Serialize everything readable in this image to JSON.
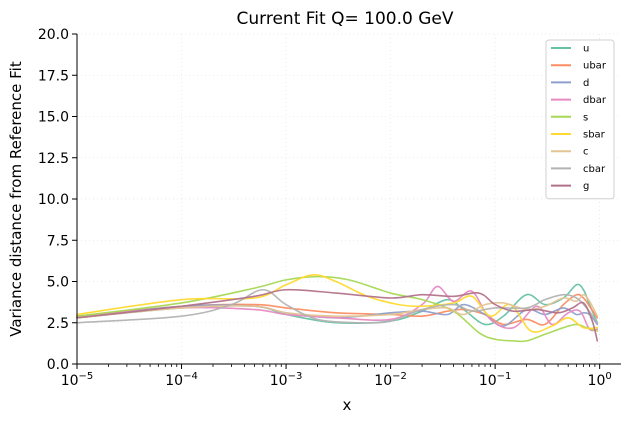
{
  "chart_data": {
    "type": "line",
    "title": "Current Fit Q= 100.0 GeV",
    "xlabel": "x",
    "ylabel": "Variance distance from Reference Fit",
    "xscale": "log",
    "xlim": [
      1e-05,
      1.6
    ],
    "ylim": [
      0,
      20
    ],
    "x_ticks": [
      1e-05,
      0.0001,
      0.001,
      0.01,
      0.1,
      1
    ],
    "x_tick_labels": [
      {
        "base": "10",
        "exp": "−5"
      },
      {
        "base": "10",
        "exp": "−4"
      },
      {
        "base": "10",
        "exp": "−3"
      },
      {
        "base": "10",
        "exp": "−2"
      },
      {
        "base": "10",
        "exp": "−1"
      },
      {
        "base": "10",
        "exp": "0"
      }
    ],
    "y_ticks": [
      0,
      2.5,
      5,
      7.5,
      10,
      12.5,
      15,
      17.5,
      20
    ],
    "y_tick_labels": [
      "0.0",
      "2.5",
      "5.0",
      "7.5",
      "10.0",
      "12.5",
      "15.0",
      "17.5",
      "20.0"
    ],
    "grid": true,
    "legend_position": "top-right",
    "series": [
      {
        "name": "u",
        "color": "#66c2a5",
        "x": [
          1e-05,
          0.0001,
          0.0005,
          0.001,
          0.003,
          0.01,
          0.02,
          0.035,
          0.05,
          0.08,
          0.12,
          0.2,
          0.3,
          0.45,
          0.6,
          0.7,
          0.8,
          0.95
        ],
        "y": [
          2.8,
          3.4,
          3.5,
          3.0,
          2.5,
          2.6,
          3.2,
          3.9,
          3.3,
          2.4,
          2.9,
          4.2,
          3.6,
          4.0,
          4.8,
          4.5,
          3.6,
          2.5
        ]
      },
      {
        "name": "ubar",
        "color": "#fc8d62",
        "x": [
          1e-05,
          0.0001,
          0.0005,
          0.001,
          0.003,
          0.01,
          0.02,
          0.035,
          0.05,
          0.08,
          0.12,
          0.2,
          0.3,
          0.45,
          0.6,
          0.7,
          0.8,
          0.95
        ],
        "y": [
          2.9,
          3.5,
          3.6,
          3.4,
          3.1,
          3.0,
          2.9,
          3.2,
          3.3,
          3.0,
          2.4,
          2.7,
          2.4,
          3.6,
          4.2,
          4.0,
          3.5,
          2.8
        ]
      },
      {
        "name": "d",
        "color": "#8da0cb",
        "x": [
          1e-05,
          0.0001,
          0.0005,
          0.001,
          0.003,
          0.01,
          0.02,
          0.035,
          0.05,
          0.08,
          0.12,
          0.2,
          0.3,
          0.45,
          0.6,
          0.7,
          0.8,
          0.95
        ],
        "y": [
          2.8,
          3.5,
          3.5,
          3.1,
          2.8,
          3.1,
          3.2,
          3.0,
          3.6,
          3.0,
          2.3,
          3.3,
          3.0,
          3.4,
          3.0,
          3.1,
          3.0,
          2.4
        ]
      },
      {
        "name": "dbar",
        "color": "#e78ac3",
        "x": [
          1e-05,
          0.0001,
          0.0005,
          0.001,
          0.003,
          0.01,
          0.02,
          0.028,
          0.04,
          0.06,
          0.09,
          0.15,
          0.25,
          0.35,
          0.5,
          0.65,
          0.8,
          0.95
        ],
        "y": [
          2.9,
          3.4,
          3.3,
          3.0,
          2.8,
          2.7,
          3.6,
          4.7,
          3.8,
          4.4,
          2.7,
          2.2,
          3.5,
          2.4,
          3.1,
          3.2,
          2.1,
          2.1
        ]
      },
      {
        "name": "s",
        "color": "#a6d854",
        "x": [
          1e-05,
          0.0001,
          0.0005,
          0.001,
          0.002,
          0.004,
          0.01,
          0.02,
          0.04,
          0.07,
          0.1,
          0.15,
          0.2,
          0.3,
          0.45,
          0.6,
          0.75,
          0.95
        ],
        "y": [
          2.9,
          3.7,
          4.6,
          5.1,
          5.3,
          5.1,
          4.3,
          3.9,
          3.2,
          1.9,
          1.5,
          1.4,
          1.4,
          1.8,
          2.2,
          2.4,
          2.2,
          2.0
        ]
      },
      {
        "name": "sbar",
        "color": "#ffd92f",
        "x": [
          1e-05,
          0.0001,
          0.0005,
          0.001,
          0.0018,
          0.003,
          0.006,
          0.012,
          0.02,
          0.04,
          0.06,
          0.09,
          0.14,
          0.22,
          0.35,
          0.5,
          0.7,
          0.95
        ],
        "y": [
          3.0,
          3.9,
          4.0,
          4.8,
          5.4,
          5.0,
          4.1,
          3.6,
          3.5,
          3.7,
          4.1,
          2.9,
          3.6,
          2.0,
          2.3,
          2.8,
          2.2,
          2.2
        ]
      },
      {
        "name": "c",
        "color": "#e5c494",
        "x": [
          1e-05,
          0.0001,
          0.0005,
          0.001,
          0.003,
          0.01,
          0.02,
          0.035,
          0.05,
          0.08,
          0.12,
          0.2,
          0.3,
          0.45,
          0.6,
          0.7,
          0.8,
          0.95
        ],
        "y": [
          2.8,
          3.4,
          3.5,
          3.1,
          2.9,
          3.0,
          3.3,
          3.4,
          3.0,
          3.6,
          3.7,
          3.3,
          3.5,
          4.0,
          3.8,
          4.2,
          3.8,
          2.9
        ]
      },
      {
        "name": "cbar",
        "color": "#b3b3b3",
        "x": [
          1e-05,
          0.0001,
          0.0003,
          0.0006,
          0.001,
          0.002,
          0.005,
          0.01,
          0.02,
          0.04,
          0.06,
          0.1,
          0.2,
          0.3,
          0.45,
          0.6,
          0.75,
          0.95
        ],
        "y": [
          2.5,
          2.9,
          3.6,
          4.5,
          3.6,
          2.7,
          2.5,
          2.6,
          3.3,
          3.6,
          3.2,
          3.4,
          3.4,
          3.9,
          4.2,
          4.0,
          3.4,
          2.5
        ]
      },
      {
        "name": "g",
        "color": "#b3728b",
        "x": [
          1e-05,
          0.0001,
          0.0005,
          0.001,
          0.003,
          0.01,
          0.02,
          0.04,
          0.07,
          0.1,
          0.15,
          0.25,
          0.4,
          0.55,
          0.7,
          0.85,
          0.95
        ],
        "y": [
          2.8,
          3.5,
          4.1,
          4.5,
          4.3,
          4.0,
          4.2,
          4.1,
          4.3,
          3.6,
          3.2,
          3.3,
          3.1,
          3.4,
          3.7,
          2.6,
          1.4
        ]
      }
    ]
  }
}
